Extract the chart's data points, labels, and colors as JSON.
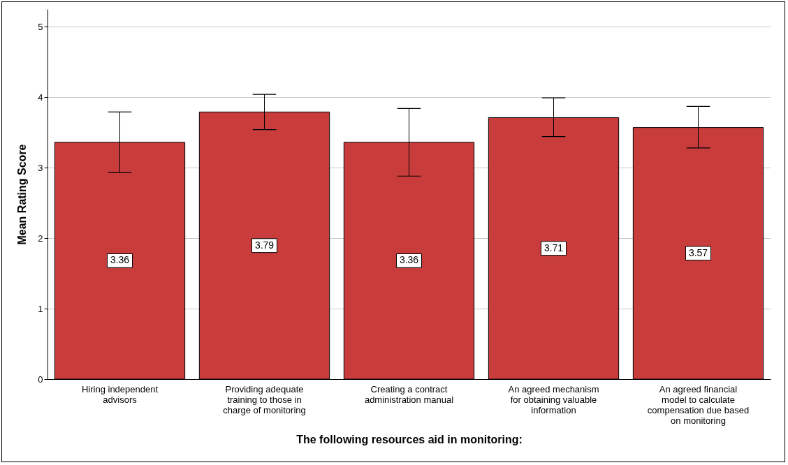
{
  "chart_data": {
    "type": "bar",
    "xlabel": "The following resources aid in monitoring:",
    "ylabel": "Mean Rating Score",
    "categories": [
      "Hiring independent advisors",
      "Providing adequate training to those in charge of monitoring",
      "Creating a contract administration manual",
      "An agreed mechanism for obtaining valuable information",
      "An agreed financial model to calculate compensation due based on monitoring"
    ],
    "values": [
      3.36,
      3.79,
      3.36,
      3.71,
      3.57
    ],
    "errors": [
      [
        2.93,
        3.79
      ],
      [
        3.54,
        4.04
      ],
      [
        2.88,
        3.84
      ],
      [
        3.44,
        3.99
      ],
      [
        3.28,
        3.87
      ]
    ],
    "color": "#c83c3c",
    "data_labels": true,
    "ylim": [
      0,
      5.25
    ],
    "yticks": [
      0,
      1,
      2,
      3,
      4,
      5
    ],
    "grid": "y"
  }
}
